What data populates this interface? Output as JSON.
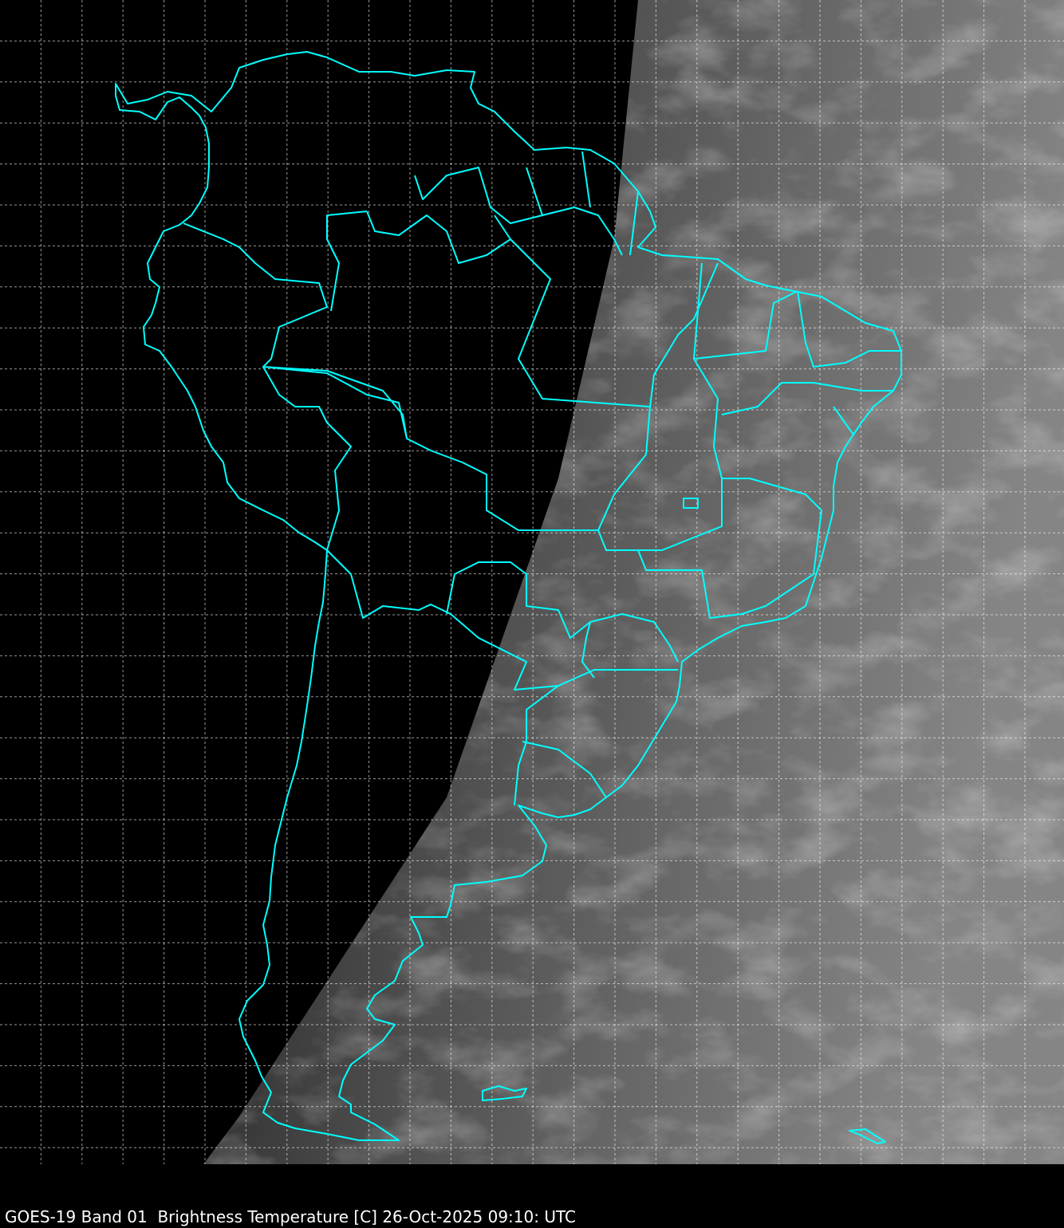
{
  "caption": "GOES-19 Band 01  Brightness Temperature [C] 26-Oct-2025 09:10: UTC",
  "colors": {
    "background": "#000000",
    "boundaries": "#00ffff",
    "gridlines": "#ffffff",
    "cloud_field": "#7a7a7a"
  },
  "map": {
    "region": "South America",
    "gridlines": true,
    "gridline_style": "dashed"
  }
}
